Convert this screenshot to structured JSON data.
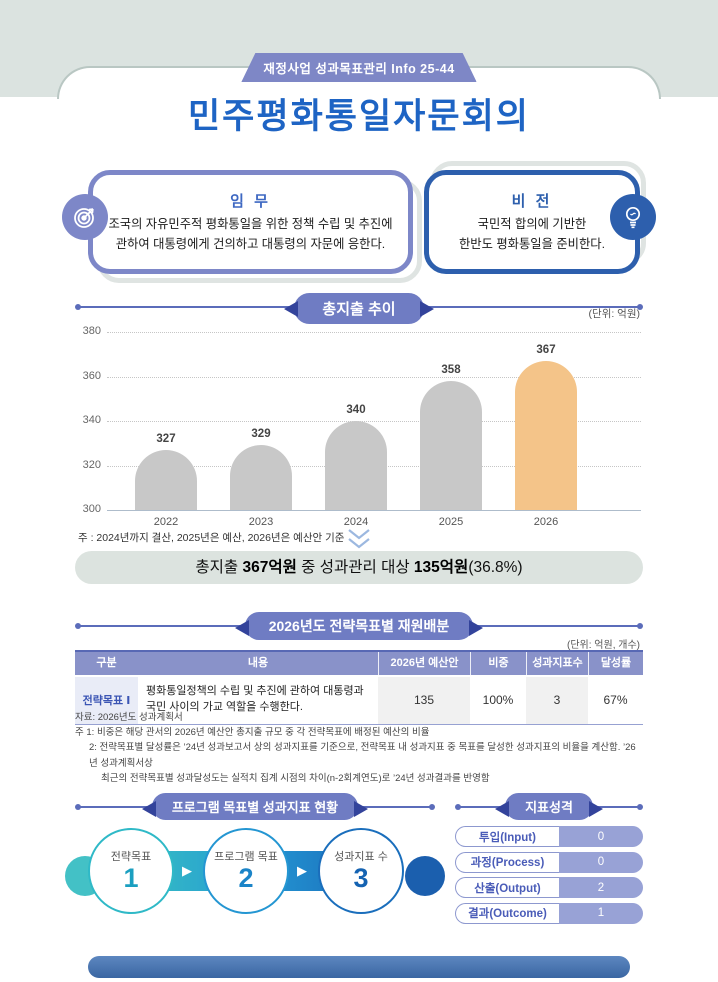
{
  "page": {
    "badge": "재정사업 성과목표관리 Info 25-44",
    "title": "민주평화통일자문회의"
  },
  "mission": {
    "title": "임 무",
    "line1": "조국의 자유민주적 평화통일을 위한 정책 수립 및 추진에",
    "line2": "관하여 대통령에게 건의하고 대통령의 자문에 응한다."
  },
  "vision": {
    "title": "비 전",
    "line1": "국민적 합의에 기반한",
    "line2": "한반도 평화통일을 준비한다."
  },
  "chart_section": {
    "header": "총지출 추이",
    "unit": "(단위: 억원)",
    "note": "주 : 2024년까지 결산, 2025년은 예산, 2026년은 예산안 기준",
    "summary": {
      "part1": "총지출 ",
      "bold1": "367억원",
      "part2": " 중 성과관리 대상 ",
      "bold2": "135억원",
      "part3": "(36.8%)"
    }
  },
  "chart_data": {
    "type": "bar",
    "title": "총지출 추이",
    "unit": "억원",
    "categories": [
      "2022",
      "2023",
      "2024",
      "2025",
      "2026"
    ],
    "values": [
      327,
      329,
      340,
      358,
      367
    ],
    "ylim": [
      300,
      380
    ],
    "yticks": [
      300,
      320,
      340,
      360,
      380
    ],
    "grid": "dotted-horizontal",
    "bar_colors": [
      "#c8c8c8",
      "#c8c8c8",
      "#c8c8c8",
      "#c8c8c8",
      "#f4c489"
    ],
    "highlight_index": 4,
    "note": "2024년까지 결산, 2025년은 예산, 2026년은 예산안 기준"
  },
  "allocation": {
    "header": "2026년도 전략목표별 재원배분",
    "unit": "(단위: 억원, 개수)",
    "columns": [
      "구분",
      "내용",
      "2026년 예산안",
      "비중",
      "성과지표수",
      "달성률"
    ],
    "rows": [
      {
        "category": "전략목표 Ⅰ",
        "description": "평화통일정책의 수립 및 추진에 관하여 대통령과 국민 사이의 가교 역할을 수행한다.",
        "budget": "135",
        "share": "100%",
        "indicators": "3",
        "achievement": "67%"
      }
    ],
    "footnotes": [
      "자료: 2026년도 성과계획서",
      "주 1: 비중은 해당 관서의 2026년 예산안 총지출 규모 중 각 전략목표에 배정된 예산의 비율",
      "2: 전략목표별 달성률은 ’24년 성과보고서 상의 성과지표를 기준으로, 전략목표 내 성과지표 중 목표를 달성한 성과지표의 비율을 계산함. ’26년 성과계획서상",
      "최근의 전략목표별 성과달성도는 실적치 집계 시점의 차이(n-2회계연도)로 ’24년 성과결과를 반영함"
    ]
  },
  "program": {
    "header": "프로그램 목표별 성과지표 현황",
    "steps": [
      {
        "label": "전략목표",
        "value": "1"
      },
      {
        "label": "프로그램 목표",
        "value": "2"
      },
      {
        "label": "성과지표 수",
        "value": "3"
      }
    ]
  },
  "nature": {
    "header": "지표성격",
    "rows": [
      {
        "label": "투입(Input)",
        "value": "0"
      },
      {
        "label": "과정(Process)",
        "value": "0"
      },
      {
        "label": "산출(Output)",
        "value": "2"
      },
      {
        "label": "결과(Outcome)",
        "value": "1"
      }
    ]
  },
  "icons": {
    "arrow_right": "▶"
  },
  "colors": {
    "title_blue": "#1e64c4",
    "badge_periwinkle": "#7e87c6",
    "section_pill": "#6f7cc3",
    "table_header": "#8992c9",
    "bar_gray": "#c8c8c8",
    "bar_highlight": "#f4c489",
    "mission_border": "#7d87c8",
    "vision_border": "#2d5fad",
    "flow_teal": "#2fb9c7",
    "flow_blue": "#2496d2",
    "flow_deep_blue": "#1a6ebc",
    "summary_bg": "#dce3df",
    "top_band": "#dbe3e0",
    "footer_bar": "#4a79b4"
  }
}
